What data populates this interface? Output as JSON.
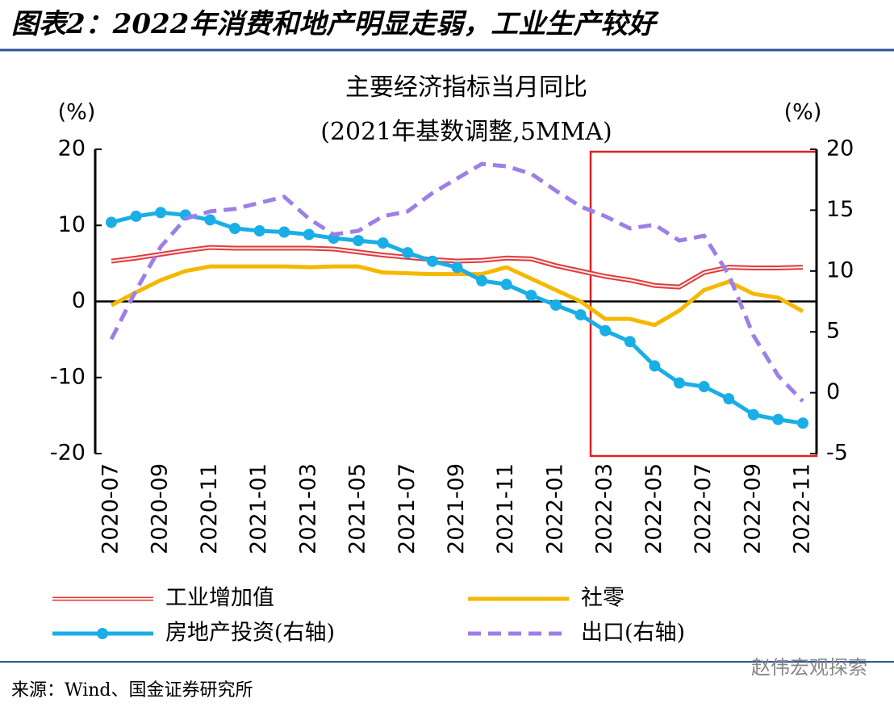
{
  "header": {
    "title": "图表2：2022年消费和地产明显走弱，工业生产较好"
  },
  "chart_data": {
    "type": "line",
    "title": "主要经济指标当月同比",
    "subtitle": "(2021年基数调整,5MMA)",
    "y_label": "(%)",
    "y2_label": "(%)",
    "categories": [
      "2020-07",
      null,
      "2020-09",
      null,
      "2020-11",
      null,
      "2021-01",
      null,
      "2021-03",
      null,
      "2021-05",
      null,
      "2021-07",
      null,
      "2021-09",
      null,
      "2021-11",
      null,
      "2022-01",
      null,
      "2022-03",
      null,
      "2022-05",
      null,
      "2022-07",
      null,
      "2022-09",
      null,
      "2022-11"
    ],
    "ylim": [
      -20,
      20
    ],
    "yticks": [
      -20,
      -10,
      0,
      10,
      20
    ],
    "y2lim": [
      -5,
      20
    ],
    "y2ticks": [
      -5,
      0,
      5,
      10,
      15,
      20
    ],
    "series": [
      {
        "name": "工业增加值",
        "color": "#e03c3c",
        "style": "double",
        "values": [
          5.3,
          5.7,
          6.2,
          6.7,
          7.1,
          7.0,
          7.0,
          7.0,
          7.0,
          6.9,
          6.5,
          6.1,
          5.8,
          5.5,
          5.3,
          5.4,
          5.7,
          5.6,
          4.7,
          4.0,
          3.3,
          2.8,
          2.1,
          1.9,
          3.8,
          4.5,
          4.4,
          4.4,
          4.5
        ]
      },
      {
        "name": "社零",
        "color": "#f5b800",
        "style": "solid",
        "values": [
          -0.5,
          1.2,
          2.8,
          4.0,
          4.6,
          4.6,
          4.6,
          4.6,
          4.5,
          4.6,
          4.6,
          3.8,
          3.7,
          3.6,
          3.6,
          3.6,
          4.5,
          3.0,
          1.5,
          0.0,
          -2.3,
          -2.3,
          -3.1,
          -1.2,
          1.5,
          2.6,
          1.0,
          0.5,
          -1.3
        ]
      },
      {
        "name": "房地产投资(右轴)",
        "color": "#1aaee6",
        "style": "marker",
        "axis": "y2",
        "values": [
          14.0,
          14.5,
          14.8,
          14.6,
          14.2,
          13.5,
          13.3,
          13.2,
          13.0,
          12.7,
          12.5,
          12.3,
          11.5,
          10.8,
          10.3,
          9.2,
          8.9,
          8.0,
          7.2,
          6.4,
          5.1,
          4.2,
          2.2,
          0.8,
          0.5,
          -0.5,
          -1.8,
          -2.2,
          -2.5
        ]
      },
      {
        "name": "出口(右轴)",
        "color": "#9d7fe8",
        "style": "dashed",
        "axis": "y2",
        "values": [
          4.4,
          8.4,
          12.0,
          14.3,
          14.9,
          15.1,
          15.6,
          16.1,
          14.3,
          13.0,
          13.3,
          14.5,
          14.9,
          16.4,
          17.6,
          18.8,
          18.6,
          18.0,
          16.6,
          15.3,
          14.5,
          13.5,
          13.8,
          12.5,
          12.9,
          9.7,
          4.7,
          1.4,
          -0.7
        ]
      }
    ]
  },
  "source": "来源：Wind、国金证券研究所",
  "watermark": "赵伟宏观探索"
}
